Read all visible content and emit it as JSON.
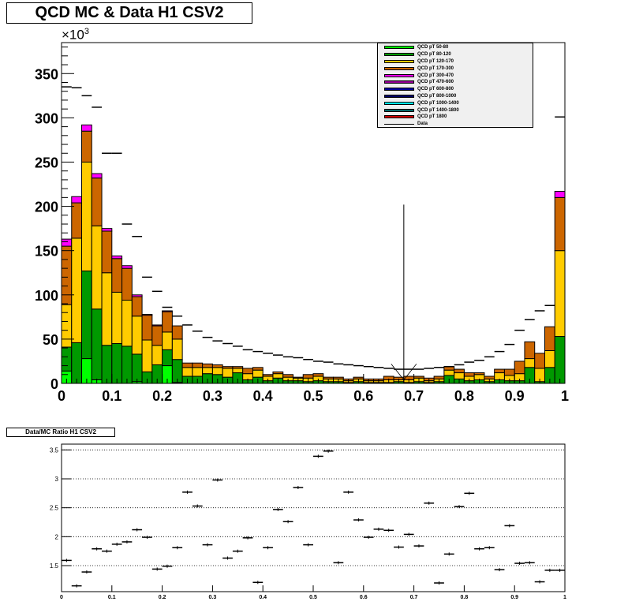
{
  "title": "QCD MC & Data H1 CSV2",
  "ratio_title": "Data/MC Ratio H1 CSV2",
  "y_exponent": "×10",
  "y_exponent_power": "3",
  "legend": [
    {
      "label": "QCD pT 50-80",
      "color": "#00ff00"
    },
    {
      "label": "QCD pT 80-120",
      "color": "#009900"
    },
    {
      "label": "QCD pT 120-170",
      "color": "#ffcc00"
    },
    {
      "label": "QCD pT 170-300",
      "color": "#cc6600"
    },
    {
      "label": "QCD pT 300-470",
      "color": "#ff00ff"
    },
    {
      "label": "QCD pT 470-600",
      "color": "#990099"
    },
    {
      "label": "QCD pT 600-800",
      "color": "#000099"
    },
    {
      "label": "QCD pT 800-1000",
      "color": "#000066"
    },
    {
      "label": "QCD pT 1000-1400",
      "color": "#00ffff"
    },
    {
      "label": "QCD pT 1400-1800",
      "color": "#006666"
    },
    {
      "label": "QCD pT 1800",
      "color": "#cc0000"
    },
    {
      "label": "Data",
      "color": "#000000",
      "line": true
    }
  ],
  "chart_data": [
    {
      "type": "bar",
      "title": "QCD MC & Data H1 CSV2",
      "stacked": true,
      "x_range": [
        0,
        1
      ],
      "ylim": [
        0,
        385
      ],
      "y_unit_multiplier": 1000,
      "x_ticks": [
        "0",
        "0.1",
        "0.2",
        "0.3",
        "0.4",
        "0.5",
        "0.6",
        "0.7",
        "0.8",
        "0.9",
        "1"
      ],
      "y_ticks": [
        "0",
        "50",
        "100",
        "150",
        "200",
        "250",
        "300",
        "350"
      ],
      "bin_width": 0.02,
      "bin_centers": [
        0.01,
        0.03,
        0.05,
        0.07,
        0.09,
        0.11,
        0.13,
        0.15,
        0.17,
        0.19,
        0.21,
        0.23,
        0.25,
        0.27,
        0.29,
        0.31,
        0.33,
        0.35,
        0.37,
        0.39,
        0.41,
        0.43,
        0.45,
        0.47,
        0.49,
        0.51,
        0.53,
        0.55,
        0.57,
        0.59,
        0.61,
        0.63,
        0.65,
        0.67,
        0.69,
        0.71,
        0.73,
        0.75,
        0.77,
        0.79,
        0.81,
        0.83,
        0.85,
        0.87,
        0.89,
        0.91,
        0.93,
        0.95,
        0.97,
        0.99
      ],
      "series": [
        {
          "name": "QCD pT 50-80",
          "color": "#00ff00",
          "values": [
            14,
            0,
            28,
            4,
            0,
            0,
            0,
            2,
            0,
            0,
            20,
            1,
            0,
            0,
            0,
            0,
            0,
            0,
            0,
            0,
            0,
            0,
            0,
            0,
            0,
            0,
            0,
            0,
            0,
            0,
            0,
            0,
            0,
            0,
            0,
            0,
            0,
            0,
            0,
            0,
            0,
            0,
            0,
            0,
            0,
            0,
            0,
            0,
            0,
            0
          ]
        },
        {
          "name": "QCD pT 80-120",
          "color": "#009900",
          "values": [
            27,
            46,
            99,
            80,
            43,
            45,
            42,
            31,
            13,
            21,
            18,
            26,
            8,
            8,
            11,
            10,
            7,
            12,
            4,
            7,
            3,
            6,
            3,
            3,
            2,
            3,
            2,
            2,
            1,
            2,
            1,
            1,
            1,
            2,
            1,
            2,
            1,
            2,
            9,
            5,
            3,
            4,
            2,
            4,
            3,
            3,
            18,
            2,
            18,
            53
          ]
        },
        {
          "name": "QCD pT 120-170",
          "color": "#ffcc00",
          "values": [
            48,
            118,
            123,
            94,
            82,
            58,
            52,
            43,
            36,
            22,
            20,
            23,
            10,
            10,
            7,
            8,
            10,
            5,
            7,
            8,
            5,
            5,
            4,
            3,
            4,
            5,
            3,
            3,
            2,
            3,
            2,
            2,
            3,
            2,
            3,
            4,
            2,
            3,
            6,
            7,
            5,
            6,
            3,
            8,
            6,
            8,
            10,
            15,
            19,
            97
          ]
        },
        {
          "name": "QCD pT 170-300",
          "color": "#cc6600",
          "values": [
            66,
            40,
            35,
            54,
            47,
            38,
            36,
            22,
            28,
            22,
            23,
            15,
            5,
            5,
            4,
            3,
            2,
            2,
            6,
            3,
            2,
            2,
            3,
            1,
            4,
            3,
            2,
            2,
            2,
            2,
            2,
            2,
            4,
            3,
            4,
            2,
            3,
            3,
            4,
            4,
            4,
            2,
            3,
            4,
            7,
            14,
            19,
            17,
            27,
            60
          ]
        },
        {
          "name": "QCD pT 300-470",
          "color": "#ff00ff",
          "values": [
            8,
            7,
            7,
            5,
            3,
            3,
            3,
            2,
            1,
            1,
            1,
            0,
            0,
            0,
            0,
            0,
            0,
            0,
            0,
            0,
            0,
            0,
            0,
            0,
            0,
            0,
            0,
            0,
            0,
            0,
            0,
            0,
            0,
            0,
            0,
            0,
            0,
            0,
            0,
            0,
            0,
            0,
            0,
            0,
            0,
            0,
            0,
            0,
            0,
            7
          ]
        }
      ],
      "data_series": {
        "name": "Data",
        "values": [
          335,
          334,
          325,
          312,
          260,
          260,
          180,
          166,
          120,
          104,
          86,
          76,
          66,
          59,
          52,
          48,
          45,
          42,
          38,
          36,
          34,
          32,
          30,
          29,
          27,
          25,
          24,
          22,
          21,
          20,
          19,
          18,
          17,
          16,
          16,
          16,
          17,
          18,
          19,
          21,
          24,
          26,
          30,
          36,
          44,
          60,
          72,
          82,
          88,
          301
        ]
      },
      "annotation_line": {
        "x": 0.68,
        "y_top": 202
      }
    },
    {
      "type": "scatter",
      "title": "Data/MC Ratio H1 CSV2",
      "x_range": [
        0,
        1
      ],
      "ylim": [
        1.05,
        3.6
      ],
      "x_ticks": [
        "0",
        "0.1",
        "0.2",
        "0.3",
        "0.4",
        "0.5",
        "0.6",
        "0.7",
        "0.8",
        "0.9",
        "1"
      ],
      "y_ticks": [
        "1.5",
        "2",
        "2.5",
        "3",
        "3.5"
      ],
      "grid": true,
      "bin_width": 0.02,
      "values": [
        1.59,
        1.15,
        1.39,
        1.79,
        1.75,
        1.87,
        1.91,
        2.12,
        1.99,
        1.44,
        1.49,
        1.81,
        2.77,
        2.53,
        1.86,
        2.98,
        1.63,
        1.75,
        1.98,
        1.21,
        1.81,
        2.47,
        2.26,
        2.85,
        1.86,
        3.39,
        3.48,
        1.55,
        2.77,
        2.29,
        1.99,
        2.13,
        2.11,
        1.82,
        2.04,
        1.84,
        2.58,
        1.2,
        1.7,
        2.52,
        2.75,
        1.79,
        1.81,
        1.43,
        2.19,
        1.54,
        1.55,
        1.22,
        1.42,
        1.42
      ]
    }
  ]
}
